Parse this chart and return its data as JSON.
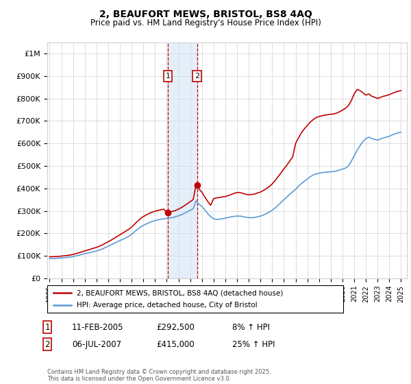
{
  "title": "2, BEAUFORT MEWS, BRISTOL, BS8 4AQ",
  "subtitle": "Price paid vs. HM Land Registry's House Price Index (HPI)",
  "legend_line1": "2, BEAUFORT MEWS, BRISTOL, BS8 4AQ (detached house)",
  "legend_line2": "HPI: Average price, detached house, City of Bristol",
  "sale1_date": "11-FEB-2005",
  "sale1_price": "£292,500",
  "sale1_hpi": "8% ↑ HPI",
  "sale2_date": "06-JUL-2007",
  "sale2_price": "£415,000",
  "sale2_hpi": "25% ↑ HPI",
  "footer": "Contains HM Land Registry data © Crown copyright and database right 2025.\nThis data is licensed under the Open Government Licence v3.0.",
  "hpi_color": "#5b9bd5",
  "price_color": "#c00000",
  "shading_color": "#cce0f5",
  "background_color": "#ffffff",
  "grid_color": "#d0d0d0",
  "ylim": [
    0,
    1050000
  ],
  "yticks": [
    0,
    100000,
    200000,
    300000,
    400000,
    500000,
    600000,
    700000,
    800000,
    900000,
    1000000
  ],
  "ytick_labels": [
    "£0",
    "£100K",
    "£200K",
    "£300K",
    "£400K",
    "£500K",
    "£600K",
    "£700K",
    "£800K",
    "£900K",
    "£1M"
  ],
  "sale1_x_year": 2005.1,
  "sale1_y": 292500,
  "sale2_x_year": 2007.58,
  "sale2_y": 415000,
  "xlim": [
    1994.8,
    2025.5
  ],
  "hpi_data": {
    "years": [
      1995,
      1995.25,
      1995.5,
      1995.75,
      1996,
      1996.25,
      1996.5,
      1996.75,
      1997,
      1997.25,
      1997.5,
      1997.75,
      1998,
      1998.25,
      1998.5,
      1998.75,
      1999,
      1999.25,
      1999.5,
      1999.75,
      2000,
      2000.25,
      2000.5,
      2000.75,
      2001,
      2001.25,
      2001.5,
      2001.75,
      2002,
      2002.25,
      2002.5,
      2002.75,
      2003,
      2003.25,
      2003.5,
      2003.75,
      2004,
      2004.25,
      2004.5,
      2004.75,
      2005,
      2005.25,
      2005.5,
      2005.75,
      2006,
      2006.25,
      2006.5,
      2006.75,
      2007,
      2007.25,
      2007.5,
      2007.75,
      2008,
      2008.25,
      2008.5,
      2008.75,
      2009,
      2009.25,
      2009.5,
      2009.75,
      2010,
      2010.25,
      2010.5,
      2010.75,
      2011,
      2011.25,
      2011.5,
      2011.75,
      2012,
      2012.25,
      2012.5,
      2012.75,
      2013,
      2013.25,
      2013.5,
      2013.75,
      2014,
      2014.25,
      2014.5,
      2014.75,
      2015,
      2015.25,
      2015.5,
      2015.75,
      2016,
      2016.25,
      2016.5,
      2016.75,
      2017,
      2017.25,
      2017.5,
      2017.75,
      2018,
      2018.25,
      2018.5,
      2018.75,
      2019,
      2019.25,
      2019.5,
      2019.75,
      2020,
      2020.25,
      2020.5,
      2020.75,
      2021,
      2021.25,
      2021.5,
      2021.75,
      2022,
      2022.25,
      2022.5,
      2022.75,
      2023,
      2023.25,
      2023.5,
      2023.75,
      2024,
      2024.25,
      2024.5,
      2024.75,
      2025
    ],
    "values": [
      88000,
      88500,
      89000,
      90000,
      91000,
      92000,
      93000,
      95000,
      97000,
      100000,
      103000,
      107000,
      110000,
      113000,
      116000,
      119000,
      122000,
      126000,
      131000,
      137000,
      143000,
      149000,
      156000,
      162000,
      168000,
      174000,
      180000,
      187000,
      196000,
      207000,
      218000,
      228000,
      236000,
      242000,
      248000,
      253000,
      257000,
      260000,
      263000,
      265000,
      267000,
      269000,
      271000,
      274000,
      278000,
      283000,
      289000,
      296000,
      303000,
      309000,
      345000,
      330000,
      320000,
      305000,
      288000,
      275000,
      265000,
      262000,
      263000,
      265000,
      268000,
      271000,
      274000,
      276000,
      277000,
      277000,
      275000,
      272000,
      270000,
      270000,
      271000,
      274000,
      277000,
      282000,
      288000,
      295000,
      303000,
      313000,
      325000,
      337000,
      350000,
      362000,
      374000,
      385000,
      396000,
      410000,
      422000,
      432000,
      442000,
      452000,
      460000,
      465000,
      468000,
      470000,
      472000,
      473000,
      474000,
      475000,
      478000,
      482000,
      486000,
      490000,
      500000,
      520000,
      545000,
      570000,
      590000,
      608000,
      622000,
      628000,
      622000,
      618000,
      615000,
      620000,
      625000,
      628000,
      632000,
      638000,
      643000,
      647000,
      650000
    ]
  },
  "red_data": {
    "years": [
      1995,
      1995.25,
      1995.5,
      1995.75,
      1996,
      1996.25,
      1996.5,
      1996.75,
      1997,
      1997.25,
      1997.5,
      1997.75,
      1998,
      1998.25,
      1998.5,
      1998.75,
      1999,
      1999.25,
      1999.5,
      1999.75,
      2000,
      2000.25,
      2000.5,
      2000.75,
      2001,
      2001.25,
      2001.5,
      2001.75,
      2002,
      2002.25,
      2002.5,
      2002.75,
      2003,
      2003.25,
      2003.5,
      2003.75,
      2004,
      2004.25,
      2004.5,
      2004.75,
      2005,
      2005.25,
      2005.5,
      2005.75,
      2006,
      2006.25,
      2006.5,
      2006.75,
      2007,
      2007.25,
      2007.5,
      2007.75,
      2008,
      2008.25,
      2008.5,
      2008.75,
      2009,
      2009.25,
      2009.5,
      2009.75,
      2010,
      2010.25,
      2010.5,
      2010.75,
      2011,
      2011.25,
      2011.5,
      2011.75,
      2012,
      2012.25,
      2012.5,
      2012.75,
      2013,
      2013.25,
      2013.5,
      2013.75,
      2014,
      2014.25,
      2014.5,
      2014.75,
      2015,
      2015.25,
      2015.5,
      2015.75,
      2016,
      2016.25,
      2016.5,
      2016.75,
      2017,
      2017.25,
      2017.5,
      2017.75,
      2018,
      2018.25,
      2018.5,
      2018.75,
      2019,
      2019.25,
      2019.5,
      2019.75,
      2020,
      2020.25,
      2020.5,
      2020.75,
      2021,
      2021.25,
      2021.5,
      2021.75,
      2022,
      2022.25,
      2022.5,
      2022.75,
      2023,
      2023.25,
      2023.5,
      2023.75,
      2024,
      2024.25,
      2024.5,
      2024.75,
      2025
    ],
    "values": [
      96000,
      96500,
      97000,
      98000,
      99000,
      100500,
      102000,
      104000,
      106500,
      110000,
      114000,
      118000,
      122000,
      126000,
      130000,
      134000,
      138000,
      143000,
      149000,
      156000,
      163000,
      170000,
      178000,
      186000,
      194000,
      202000,
      210000,
      218000,
      228000,
      241000,
      254000,
      266000,
      275000,
      282000,
      289000,
      294000,
      299000,
      302000,
      305000,
      308000,
      292500,
      295000,
      298000,
      302000,
      308000,
      315000,
      323000,
      332000,
      341000,
      350000,
      415000,
      398000,
      383000,
      362000,
      342000,
      325000,
      355000,
      358000,
      360000,
      362000,
      364000,
      368000,
      373000,
      378000,
      382000,
      382000,
      378000,
      374000,
      372000,
      373000,
      375000,
      380000,
      384000,
      391000,
      399000,
      408000,
      420000,
      435000,
      452000,
      469000,
      487000,
      503000,
      522000,
      540000,
      600000,
      625000,
      648000,
      665000,
      680000,
      695000,
      706000,
      715000,
      720000,
      723000,
      726000,
      728000,
      730000,
      731000,
      735000,
      741000,
      748000,
      756000,
      768000,
      790000,
      820000,
      840000,
      835000,
      825000,
      815000,
      820000,
      810000,
      805000,
      800000,
      805000,
      810000,
      813000,
      817000,
      823000,
      828000,
      832000,
      835000
    ]
  }
}
